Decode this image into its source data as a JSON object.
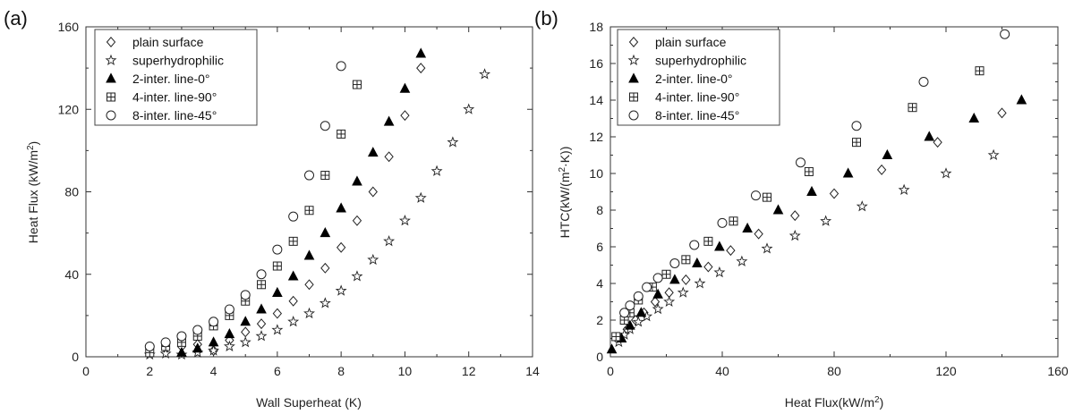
{
  "chart_data": [
    {
      "type": "scatter",
      "panel_label": "(a)",
      "xlabel": "Wall Superheat (K)",
      "ylabel_main": "Heat Flux (kW/m",
      "ylabel_sup": "2",
      "ylabel_tail": ")",
      "xlim": [
        0,
        14
      ],
      "ylim": [
        0,
        160
      ],
      "xticks": [
        0,
        2,
        4,
        6,
        8,
        10,
        12,
        14
      ],
      "yticks": [
        0,
        40,
        80,
        120,
        160
      ],
      "grid": false,
      "legend_position": "top-left",
      "series": [
        {
          "name": "plain surface",
          "marker": "diamond",
          "x": [
            2.5,
            3,
            3.5,
            4,
            4.5,
            5,
            5.5,
            6,
            6.5,
            7,
            7.5,
            8,
            8.5,
            9,
            9.5,
            10,
            10.5
          ],
          "y": [
            4,
            5,
            6,
            3,
            8,
            12,
            16,
            21,
            27,
            35,
            43,
            53,
            66,
            80,
            97,
            117,
            140
          ]
        },
        {
          "name": "superhydrophilic",
          "marker": "star",
          "x": [
            2,
            2.5,
            3,
            3.5,
            4,
            4.5,
            5,
            5.5,
            6,
            6.5,
            7,
            7.5,
            8,
            8.5,
            9,
            9.5,
            10,
            10.5,
            11,
            11.5,
            12,
            12.5
          ],
          "y": [
            1,
            1.5,
            1,
            2,
            3,
            5,
            7,
            10,
            13,
            17,
            21,
            26,
            32,
            39,
            47,
            56,
            66,
            77,
            90,
            104,
            120,
            137
          ]
        },
        {
          "name": "2-inter. line-0°",
          "marker": "triangle",
          "x": [
            3,
            3.5,
            4,
            4.5,
            5,
            5.5,
            6,
            6.5,
            7,
            7.5,
            8,
            8.5,
            9,
            9.5,
            10,
            10.5
          ],
          "y": [
            2,
            4,
            7,
            11,
            17,
            23,
            31,
            39,
            49,
            60,
            72,
            85,
            99,
            114,
            130,
            147
          ]
        },
        {
          "name": "4-inter. line-90°",
          "marker": "boxplus",
          "x": [
            2,
            2.5,
            3,
            3.5,
            4,
            4.5,
            5,
            5.5,
            6,
            6.5,
            7,
            7.5,
            8,
            8.5
          ],
          "y": [
            2,
            5,
            7,
            10,
            15,
            20,
            27,
            35,
            44,
            56,
            71,
            88,
            108,
            132
          ]
        },
        {
          "name": "8-inter. line-45°",
          "marker": "circle",
          "x": [
            2,
            2.5,
            3,
            3.5,
            4,
            4.5,
            5,
            5.5,
            6,
            6.5,
            7,
            7.5,
            8
          ],
          "y": [
            5,
            7,
            10,
            13,
            17,
            23,
            30,
            40,
            52,
            68,
            88,
            112,
            141
          ]
        }
      ]
    },
    {
      "type": "scatter",
      "panel_label": "(b)",
      "xlabel_main": "Heat Flux(kW/m",
      "xlabel_sup": "2",
      "xlabel_tail": ")",
      "ylabel_main": "HTC(kW/(m",
      "ylabel_sup": "2",
      "ylabel_tail": "·K))",
      "xlim": [
        0,
        160
      ],
      "ylim": [
        0,
        18
      ],
      "xticks": [
        0,
        40,
        80,
        120,
        160
      ],
      "yticks": [
        0,
        2,
        4,
        6,
        8,
        10,
        12,
        14,
        16,
        18
      ],
      "grid": false,
      "legend_position": "top-left",
      "series": [
        {
          "name": "plain surface",
          "marker": "diamond",
          "x": [
            3,
            6,
            9,
            12,
            16,
            21,
            27,
            35,
            43,
            53,
            66,
            80,
            97,
            117,
            140
          ],
          "y": [
            1,
            1.5,
            2,
            2.4,
            3,
            3.5,
            4.2,
            4.9,
            5.8,
            6.7,
            7.7,
            8.9,
            10.2,
            11.7,
            13.3
          ]
        },
        {
          "name": "superhydrophilic",
          "marker": "star",
          "x": [
            3,
            5,
            7,
            10,
            13,
            17,
            21,
            26,
            32,
            39,
            47,
            56,
            66,
            77,
            90,
            105,
            120,
            137
          ],
          "y": [
            0.8,
            1.2,
            1.5,
            1.9,
            2.2,
            2.6,
            3.0,
            3.5,
            4.0,
            4.6,
            5.2,
            5.9,
            6.6,
            7.4,
            8.2,
            9.1,
            10.0,
            11.0
          ]
        },
        {
          "name": "2-inter. line-0°",
          "marker": "triangle",
          "x": [
            0.5,
            4,
            7,
            11,
            17,
            23,
            31,
            39,
            49,
            60,
            72,
            85,
            99,
            114,
            130,
            147
          ],
          "y": [
            0.4,
            1.0,
            1.7,
            2.4,
            3.4,
            4.2,
            5.1,
            6.0,
            7.0,
            8.0,
            9.0,
            10.0,
            11.0,
            12.0,
            13.0,
            14.0
          ]
        },
        {
          "name": "4-inter. line-90°",
          "marker": "boxplus",
          "x": [
            2,
            5,
            7,
            10,
            15,
            20,
            27,
            35,
            44,
            56,
            71,
            88,
            108,
            132
          ],
          "y": [
            1.1,
            2.0,
            2.4,
            3.1,
            3.8,
            4.5,
            5.3,
            6.3,
            7.4,
            8.7,
            10.1,
            11.7,
            13.6,
            15.6
          ]
        },
        {
          "name": "8-inter. line-45°",
          "marker": "circle",
          "x": [
            5,
            7,
            10,
            13,
            17,
            23,
            30,
            40,
            52,
            68,
            88,
            112,
            141
          ],
          "y": [
            2.4,
            2.8,
            3.3,
            3.8,
            4.3,
            5.1,
            6.1,
            7.3,
            8.8,
            10.6,
            12.6,
            15.0,
            17.6
          ]
        }
      ]
    }
  ]
}
